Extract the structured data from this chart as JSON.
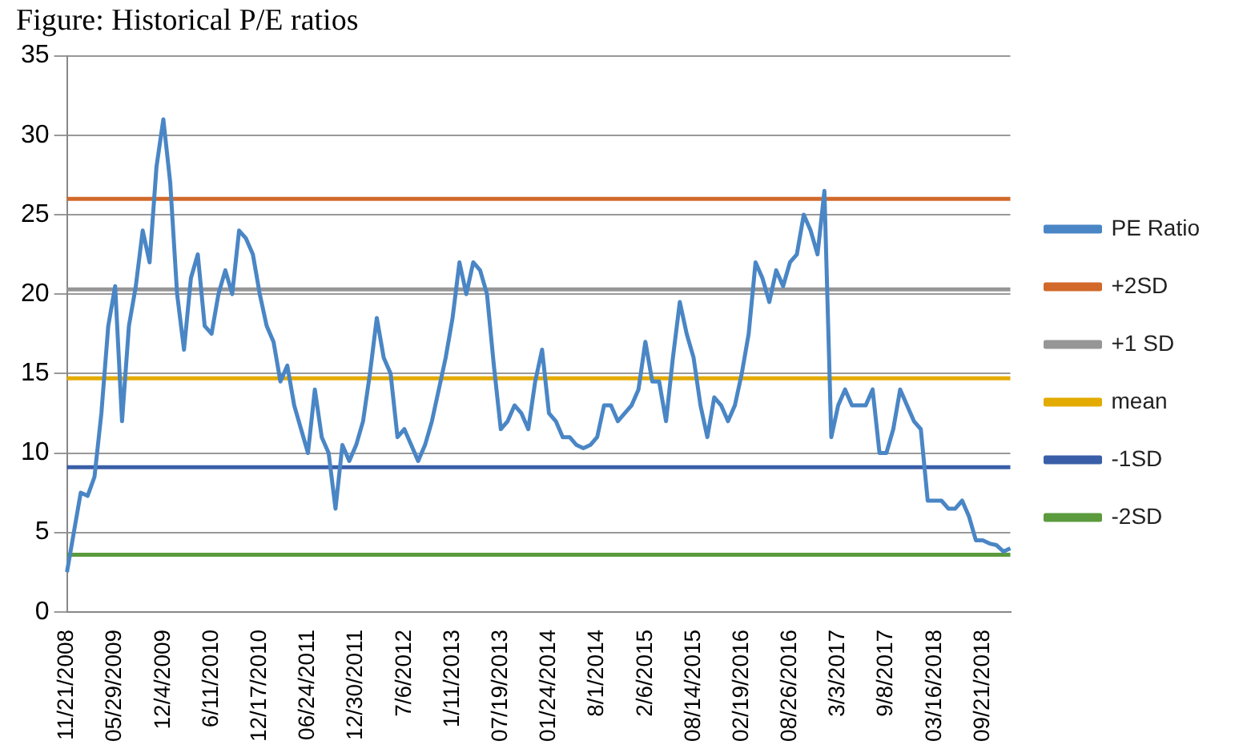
{
  "chart_data": {
    "type": "line",
    "title": "Figure: Historical P/E ratios",
    "categories": [
      "11/21/2008",
      null,
      null,
      null,
      null,
      null,
      null,
      "05/29/2009",
      null,
      null,
      null,
      null,
      null,
      null,
      "12/4/2009",
      null,
      null,
      null,
      null,
      null,
      null,
      "6/11/2010",
      null,
      null,
      null,
      null,
      null,
      null,
      "12/17/2010",
      null,
      null,
      null,
      null,
      null,
      null,
      "06/24/2011",
      null,
      null,
      null,
      null,
      null,
      null,
      "12/30/2011",
      null,
      null,
      null,
      null,
      null,
      null,
      "7/6/2012",
      null,
      null,
      null,
      null,
      null,
      null,
      "1/11/2013",
      null,
      null,
      null,
      null,
      null,
      null,
      "07/19/2013",
      null,
      null,
      null,
      null,
      null,
      null,
      "01/24/2014",
      null,
      null,
      null,
      null,
      null,
      null,
      "8/1/2014",
      null,
      null,
      null,
      null,
      null,
      null,
      "2/6/2015",
      null,
      null,
      null,
      null,
      null,
      null,
      "08/14/2015",
      null,
      null,
      null,
      null,
      null,
      null,
      "02/19/2016",
      null,
      null,
      null,
      null,
      null,
      null,
      "08/26/2016",
      null,
      null,
      null,
      null,
      null,
      null,
      "3/3/2017",
      null,
      null,
      null,
      null,
      null,
      null,
      "9/8/2017",
      null,
      null,
      null,
      null,
      null,
      null,
      "03/16/2018",
      null,
      null,
      null,
      null,
      null,
      null,
      "09/21/2018",
      null,
      null,
      null,
      null
    ],
    "series": [
      {
        "name": "PE Ratio",
        "color": "#4a86c5",
        "values": [
          2.5,
          5,
          7.5,
          7.3,
          8.5,
          12.5,
          18,
          20.5,
          12,
          18,
          20.5,
          24,
          22,
          28,
          31,
          27,
          20,
          16.5,
          21,
          22.5,
          18,
          17.5,
          20,
          21.5,
          20,
          24,
          23.5,
          22.5,
          20,
          18,
          17,
          14.5,
          15.5,
          13,
          11.5,
          10,
          14,
          11,
          10,
          6.5,
          10.5,
          9.5,
          10.5,
          12,
          15,
          18.5,
          16,
          15,
          11,
          11.5,
          10.5,
          9.5,
          10.5,
          12,
          14,
          16,
          18.5,
          22,
          20,
          22,
          21.5,
          20,
          15.5,
          11.5,
          12,
          13,
          12.5,
          11.5,
          14.5,
          16.5,
          12.5,
          12,
          11,
          11,
          10.5,
          10.3,
          10.5,
          11,
          13,
          13,
          12,
          12.5,
          13,
          14,
          17,
          14.5,
          14.5,
          12,
          16,
          19.5,
          17.5,
          16,
          13,
          11,
          13.5,
          13,
          12,
          13,
          15,
          17.5,
          22,
          21,
          19.5,
          21.5,
          20.5,
          22,
          22.5,
          25,
          24,
          22.5,
          26.5,
          11,
          13,
          14,
          13,
          13,
          13,
          14,
          10,
          10,
          11.5,
          14,
          13,
          12,
          11.5,
          7,
          7,
          7,
          6.5,
          6.5,
          7,
          6,
          4.5,
          4.5,
          4.3,
          4.2,
          3.8,
          4
        ]
      },
      {
        "name": "+2SD",
        "color": "#d2692a",
        "values": [
          26,
          26,
          26,
          26,
          26,
          26,
          26,
          26,
          26,
          26,
          26,
          26,
          26,
          26,
          26,
          26,
          26,
          26,
          26,
          26,
          26,
          26,
          26,
          26,
          26,
          26,
          26,
          26,
          26,
          26,
          26,
          26,
          26,
          26,
          26,
          26,
          26,
          26,
          26,
          26,
          26,
          26,
          26,
          26,
          26,
          26,
          26,
          26,
          26,
          26,
          26,
          26,
          26,
          26,
          26,
          26,
          26,
          26,
          26,
          26,
          26,
          26,
          26,
          26,
          26,
          26,
          26,
          26,
          26,
          26,
          26,
          26,
          26,
          26,
          26,
          26,
          26,
          26,
          26,
          26,
          26,
          26,
          26,
          26,
          26,
          26,
          26,
          26,
          26,
          26,
          26,
          26,
          26,
          26,
          26,
          26,
          26,
          26,
          26,
          26,
          26,
          26,
          26,
          26,
          26,
          26,
          26,
          26,
          26,
          26,
          26,
          26,
          26,
          26,
          26,
          26,
          26,
          26,
          26,
          26,
          26,
          26,
          26,
          26,
          26,
          26,
          26,
          26,
          26,
          26,
          26,
          26,
          26,
          26,
          26,
          26,
          26,
          26
        ]
      },
      {
        "name": "+1 SD",
        "color": "#969696",
        "values": [
          20.3,
          20.3,
          20.3,
          20.3,
          20.3,
          20.3,
          20.3,
          20.3,
          20.3,
          20.3,
          20.3,
          20.3,
          20.3,
          20.3,
          20.3,
          20.3,
          20.3,
          20.3,
          20.3,
          20.3,
          20.3,
          20.3,
          20.3,
          20.3,
          20.3,
          20.3,
          20.3,
          20.3,
          20.3,
          20.3,
          20.3,
          20.3,
          20.3,
          20.3,
          20.3,
          20.3,
          20.3,
          20.3,
          20.3,
          20.3,
          20.3,
          20.3,
          20.3,
          20.3,
          20.3,
          20.3,
          20.3,
          20.3,
          20.3,
          20.3,
          20.3,
          20.3,
          20.3,
          20.3,
          20.3,
          20.3,
          20.3,
          20.3,
          20.3,
          20.3,
          20.3,
          20.3,
          20.3,
          20.3,
          20.3,
          20.3,
          20.3,
          20.3,
          20.3,
          20.3,
          20.3,
          20.3,
          20.3,
          20.3,
          20.3,
          20.3,
          20.3,
          20.3,
          20.3,
          20.3,
          20.3,
          20.3,
          20.3,
          20.3,
          20.3,
          20.3,
          20.3,
          20.3,
          20.3,
          20.3,
          20.3,
          20.3,
          20.3,
          20.3,
          20.3,
          20.3,
          20.3,
          20.3,
          20.3,
          20.3,
          20.3,
          20.3,
          20.3,
          20.3,
          20.3,
          20.3,
          20.3,
          20.3,
          20.3,
          20.3,
          20.3,
          20.3,
          20.3,
          20.3,
          20.3,
          20.3,
          20.3,
          20.3,
          20.3,
          20.3,
          20.3,
          20.3,
          20.3,
          20.3,
          20.3,
          20.3,
          20.3,
          20.3,
          20.3,
          20.3,
          20.3,
          20.3,
          20.3,
          20.3,
          20.3,
          20.3,
          20.3,
          20.3
        ]
      },
      {
        "name": "mean",
        "color": "#e3ab00",
        "values": [
          14.7,
          14.7,
          14.7,
          14.7,
          14.7,
          14.7,
          14.7,
          14.7,
          14.7,
          14.7,
          14.7,
          14.7,
          14.7,
          14.7,
          14.7,
          14.7,
          14.7,
          14.7,
          14.7,
          14.7,
          14.7,
          14.7,
          14.7,
          14.7,
          14.7,
          14.7,
          14.7,
          14.7,
          14.7,
          14.7,
          14.7,
          14.7,
          14.7,
          14.7,
          14.7,
          14.7,
          14.7,
          14.7,
          14.7,
          14.7,
          14.7,
          14.7,
          14.7,
          14.7,
          14.7,
          14.7,
          14.7,
          14.7,
          14.7,
          14.7,
          14.7,
          14.7,
          14.7,
          14.7,
          14.7,
          14.7,
          14.7,
          14.7,
          14.7,
          14.7,
          14.7,
          14.7,
          14.7,
          14.7,
          14.7,
          14.7,
          14.7,
          14.7,
          14.7,
          14.7,
          14.7,
          14.7,
          14.7,
          14.7,
          14.7,
          14.7,
          14.7,
          14.7,
          14.7,
          14.7,
          14.7,
          14.7,
          14.7,
          14.7,
          14.7,
          14.7,
          14.7,
          14.7,
          14.7,
          14.7,
          14.7,
          14.7,
          14.7,
          14.7,
          14.7,
          14.7,
          14.7,
          14.7,
          14.7,
          14.7,
          14.7,
          14.7,
          14.7,
          14.7,
          14.7,
          14.7,
          14.7,
          14.7,
          14.7,
          14.7,
          14.7,
          14.7,
          14.7,
          14.7,
          14.7,
          14.7,
          14.7,
          14.7,
          14.7,
          14.7,
          14.7,
          14.7,
          14.7,
          14.7,
          14.7,
          14.7,
          14.7,
          14.7,
          14.7,
          14.7,
          14.7,
          14.7,
          14.7,
          14.7,
          14.7,
          14.7,
          14.7,
          14.7
        ]
      },
      {
        "name": "-1SD",
        "color": "#3a5fa8",
        "values": [
          9.1,
          9.1,
          9.1,
          9.1,
          9.1,
          9.1,
          9.1,
          9.1,
          9.1,
          9.1,
          9.1,
          9.1,
          9.1,
          9.1,
          9.1,
          9.1,
          9.1,
          9.1,
          9.1,
          9.1,
          9.1,
          9.1,
          9.1,
          9.1,
          9.1,
          9.1,
          9.1,
          9.1,
          9.1,
          9.1,
          9.1,
          9.1,
          9.1,
          9.1,
          9.1,
          9.1,
          9.1,
          9.1,
          9.1,
          9.1,
          9.1,
          9.1,
          9.1,
          9.1,
          9.1,
          9.1,
          9.1,
          9.1,
          9.1,
          9.1,
          9.1,
          9.1,
          9.1,
          9.1,
          9.1,
          9.1,
          9.1,
          9.1,
          9.1,
          9.1,
          9.1,
          9.1,
          9.1,
          9.1,
          9.1,
          9.1,
          9.1,
          9.1,
          9.1,
          9.1,
          9.1,
          9.1,
          9.1,
          9.1,
          9.1,
          9.1,
          9.1,
          9.1,
          9.1,
          9.1,
          9.1,
          9.1,
          9.1,
          9.1,
          9.1,
          9.1,
          9.1,
          9.1,
          9.1,
          9.1,
          9.1,
          9.1,
          9.1,
          9.1,
          9.1,
          9.1,
          9.1,
          9.1,
          9.1,
          9.1,
          9.1,
          9.1,
          9.1,
          9.1,
          9.1,
          9.1,
          9.1,
          9.1,
          9.1,
          9.1,
          9.1,
          9.1,
          9.1,
          9.1,
          9.1,
          9.1,
          9.1,
          9.1,
          9.1,
          9.1,
          9.1,
          9.1,
          9.1,
          9.1,
          9.1,
          9.1,
          9.1,
          9.1,
          9.1,
          9.1,
          9.1,
          9.1,
          9.1,
          9.1,
          9.1,
          9.1,
          9.1,
          9.1
        ]
      },
      {
        "name": "-2SD",
        "color": "#5b9b3d",
        "values": [
          3.6,
          3.6,
          3.6,
          3.6,
          3.6,
          3.6,
          3.6,
          3.6,
          3.6,
          3.6,
          3.6,
          3.6,
          3.6,
          3.6,
          3.6,
          3.6,
          3.6,
          3.6,
          3.6,
          3.6,
          3.6,
          3.6,
          3.6,
          3.6,
          3.6,
          3.6,
          3.6,
          3.6,
          3.6,
          3.6,
          3.6,
          3.6,
          3.6,
          3.6,
          3.6,
          3.6,
          3.6,
          3.6,
          3.6,
          3.6,
          3.6,
          3.6,
          3.6,
          3.6,
          3.6,
          3.6,
          3.6,
          3.6,
          3.6,
          3.6,
          3.6,
          3.6,
          3.6,
          3.6,
          3.6,
          3.6,
          3.6,
          3.6,
          3.6,
          3.6,
          3.6,
          3.6,
          3.6,
          3.6,
          3.6,
          3.6,
          3.6,
          3.6,
          3.6,
          3.6,
          3.6,
          3.6,
          3.6,
          3.6,
          3.6,
          3.6,
          3.6,
          3.6,
          3.6,
          3.6,
          3.6,
          3.6,
          3.6,
          3.6,
          3.6,
          3.6,
          3.6,
          3.6,
          3.6,
          3.6,
          3.6,
          3.6,
          3.6,
          3.6,
          3.6,
          3.6,
          3.6,
          3.6,
          3.6,
          3.6,
          3.6,
          3.6,
          3.6,
          3.6,
          3.6,
          3.6,
          3.6,
          3.6,
          3.6,
          3.6,
          3.6,
          3.6,
          3.6,
          3.6,
          3.6,
          3.6,
          3.6,
          3.6,
          3.6,
          3.6,
          3.6,
          3.6,
          3.6,
          3.6,
          3.6,
          3.6,
          3.6,
          3.6,
          3.6,
          3.6,
          3.6,
          3.6,
          3.6,
          3.6,
          3.6,
          3.6,
          3.6,
          3.6
        ]
      }
    ],
    "ylim": [
      0,
      35
    ],
    "yticks": [
      0,
      5,
      10,
      15,
      20,
      25,
      30,
      35
    ],
    "grid": "y",
    "legend": "right",
    "marker": "none",
    "line_style": "solid"
  }
}
